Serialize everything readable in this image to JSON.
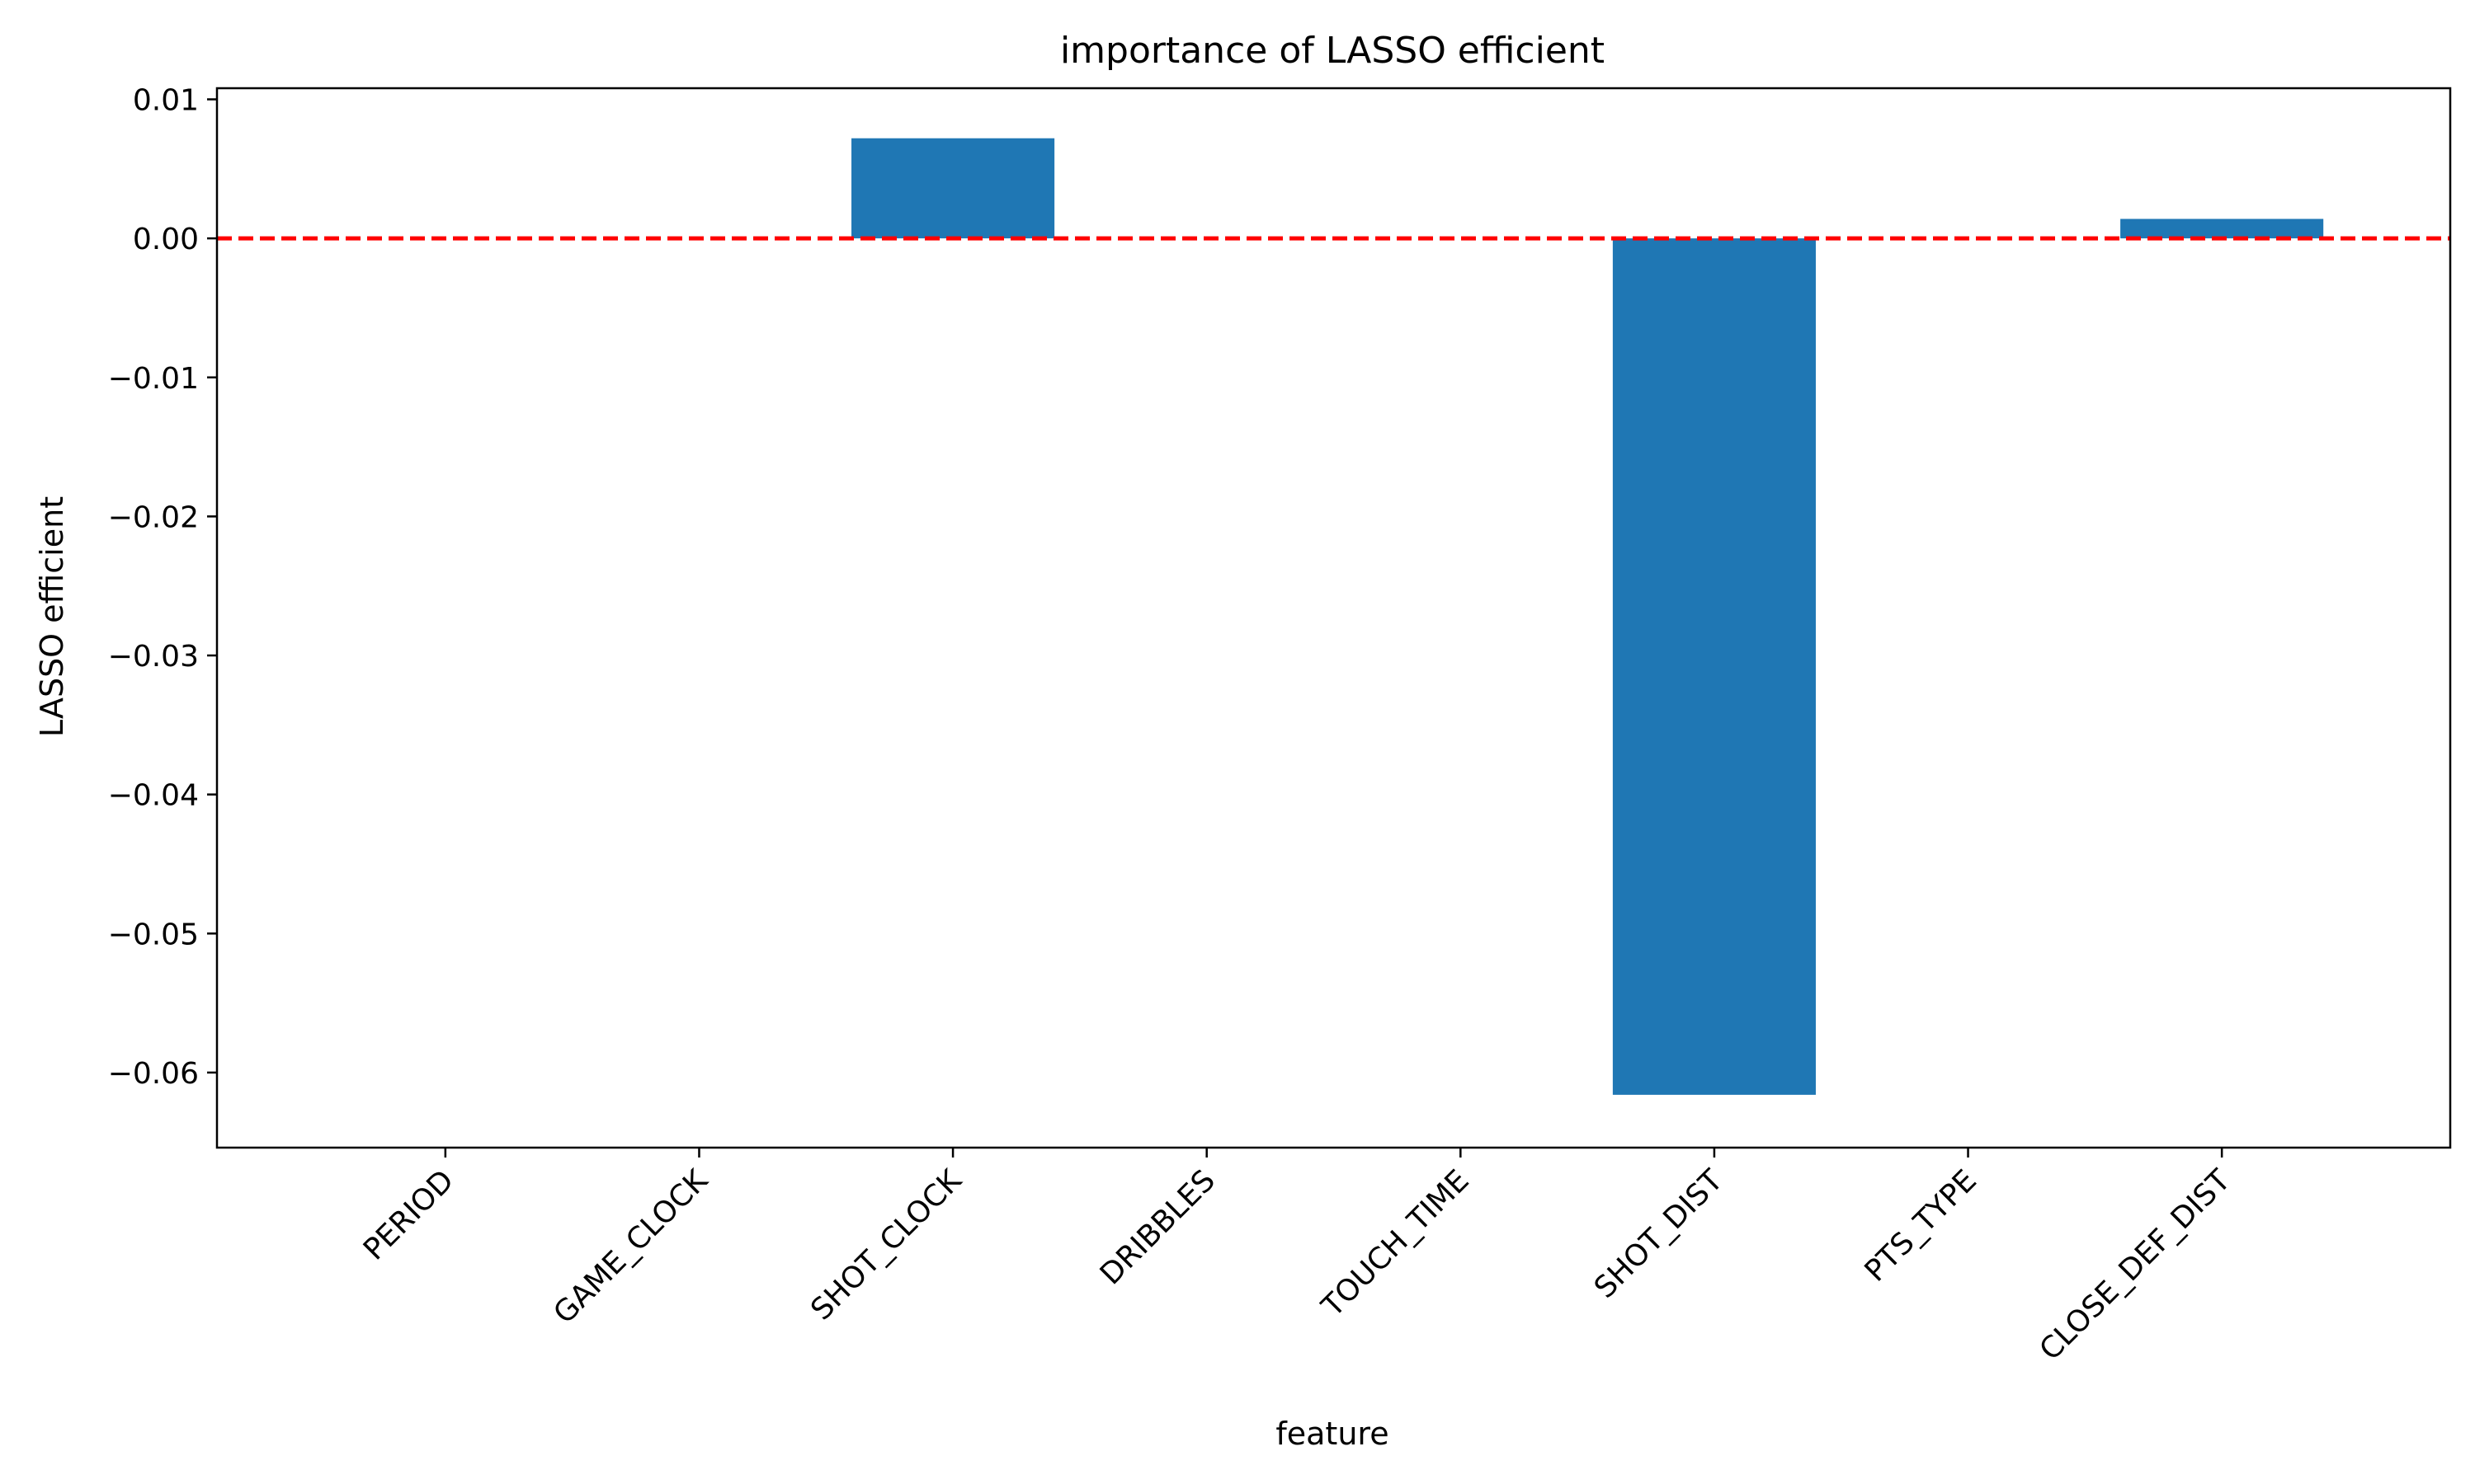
{
  "chart_data": {
    "type": "bar",
    "title": "importance of LASSO efficient",
    "xlabel": "feature",
    "ylabel": "LASSO efficient",
    "categories": [
      "PERIOD",
      "GAME_CLOCK",
      "SHOT_CLOCK",
      "DRIBBLES",
      "TOUCH_TIME",
      "SHOT_DIST",
      "PTS_TYPE",
      "CLOSE_DEF_DIST"
    ],
    "values": [
      0.0,
      0.0,
      0.0072,
      0.0,
      0.0,
      -0.0616,
      0.0,
      0.0014
    ],
    "ylim": [
      -0.0654,
      0.0108
    ],
    "yticks": [
      0.01,
      0.0,
      -0.01,
      -0.02,
      -0.03,
      -0.04,
      -0.05,
      -0.06
    ],
    "ytick_labels": [
      "0.01",
      "0.00",
      "−0.01",
      "−0.02",
      "−0.03",
      "−0.04",
      "−0.05",
      "−0.06"
    ],
    "reference_line": {
      "y": 0.0,
      "style": "dashed",
      "color": "#ff0000"
    },
    "bar_color": "#1f77b4",
    "grid": false,
    "legend": "none"
  }
}
